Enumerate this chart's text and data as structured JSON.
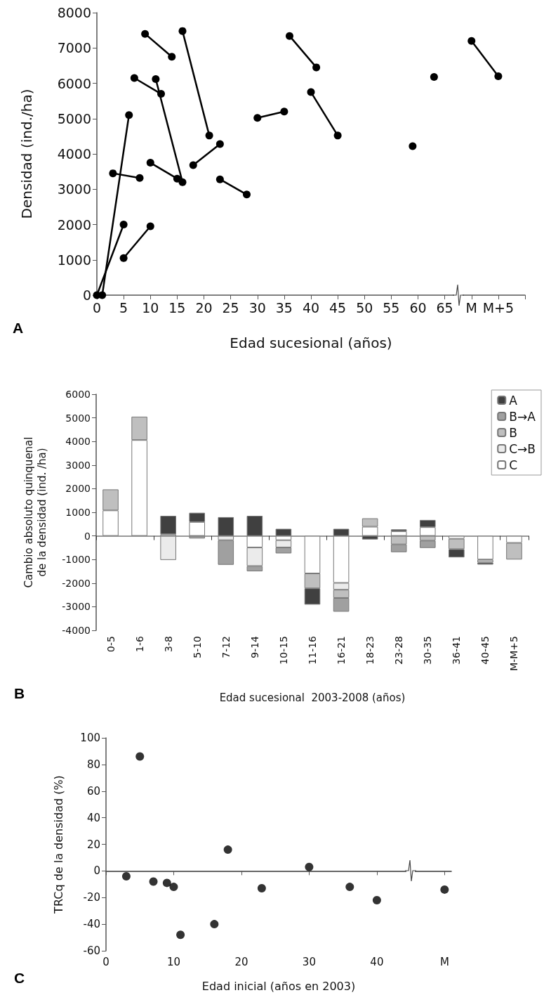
{
  "chart_data": [
    {
      "type": "line",
      "xlabel": "Edad sucesional (años)",
      "ylabel": "Densidad (ind./ha)",
      "annotations": [
        "A"
      ],
      "marker": "circle",
      "line_style": "solid",
      "xlim": [
        0,
        80
      ],
      "xticks": [
        0,
        5,
        10,
        15,
        20,
        25,
        30,
        35,
        40,
        45,
        50,
        55,
        60,
        65,
        {
          "value": 70,
          "label": "M"
        },
        {
          "value": 75,
          "label": "M+5"
        },
        {
          "value": 80,
          "label": null
        }
      ],
      "ylim": [
        0,
        8000
      ],
      "yticks": [
        0,
        1000,
        2000,
        3000,
        4000,
        5000,
        6000,
        7000,
        8000
      ],
      "series": [
        {
          "color": "#000000",
          "x": [
            1,
            6
          ],
          "values": [
            0,
            5100
          ]
        },
        {
          "color": "#000000",
          "x": [
            0,
            5
          ],
          "values": [
            0,
            2000
          ]
        },
        {
          "color": "#000000",
          "x": [
            5,
            10
          ],
          "values": [
            1050,
            1950
          ]
        },
        {
          "color": "#000000",
          "x": [
            3,
            8
          ],
          "values": [
            3450,
            3320
          ]
        },
        {
          "color": "#000000",
          "x": [
            7,
            12
          ],
          "values": [
            6150,
            5700
          ]
        },
        {
          "color": "#000000",
          "x": [
            11,
            16
          ],
          "values": [
            6120,
            3200
          ]
        },
        {
          "color": "#000000",
          "x": [
            9,
            14
          ],
          "values": [
            7400,
            6750
          ]
        },
        {
          "color": "#000000",
          "x": [
            10,
            15
          ],
          "values": [
            3750,
            3300
          ]
        },
        {
          "color": "#000000",
          "x": [
            16,
            21
          ],
          "values": [
            7480,
            4520
          ]
        },
        {
          "color": "#000000",
          "x": [
            18,
            23
          ],
          "values": [
            3680,
            4280
          ]
        },
        {
          "color": "#000000",
          "x": [
            23,
            28
          ],
          "values": [
            3280,
            2850
          ]
        },
        {
          "color": "#000000",
          "x": [
            30,
            35
          ],
          "values": [
            5020,
            5200
          ]
        },
        {
          "color": "#000000",
          "x": [
            36,
            41
          ],
          "values": [
            7340,
            6450
          ]
        },
        {
          "color": "#000000",
          "x": [
            40,
            45
          ],
          "values": [
            5750,
            4520
          ]
        },
        {
          "color": "#000000",
          "x": [
            59
          ],
          "values": [
            4220
          ]
        },
        {
          "color": "#000000",
          "x": [
            63
          ],
          "values": [
            6180
          ]
        },
        {
          "color": "#000000",
          "x": [
            70,
            75
          ],
          "values": [
            7200,
            6200
          ]
        }
      ]
    },
    {
      "type": "bar",
      "stacked": true,
      "xlabel": "Edad sucesional  2003-2008 (años)",
      "ylabel": "Cambio absoluto quinquenal\nde la densidad (ind. /ha)",
      "annotations": [
        "B"
      ],
      "legend": "top right",
      "categories": [
        "0-5",
        "1-6",
        "3-8",
        "5-10",
        "7-12",
        "9-14",
        "10-15",
        "11-16",
        "16-21",
        "18-23",
        "23-28",
        "30-35",
        "36-41",
        "40-45",
        "M-M+5"
      ],
      "ylim": [
        -4000,
        6000
      ],
      "yticks": [
        -4000,
        -3000,
        -2000,
        -1000,
        0,
        1000,
        2000,
        3000,
        4000,
        5000,
        6000
      ],
      "series": [
        {
          "name": "C",
          "color": "#ffffff",
          "values": [
            1080,
            4060,
            70,
            590,
            null,
            -490,
            -180,
            -1590,
            -1990,
            390,
            195,
            370,
            -120,
            -1000,
            -295
          ]
        },
        {
          "name": "C→B",
          "color": "#ebebeb",
          "values": [
            null,
            null,
            -1020,
            null,
            -180,
            -785,
            -310,
            null,
            -290,
            null,
            null,
            null,
            null,
            null,
            null
          ]
        },
        {
          "name": "B",
          "color": "#bfbfbf",
          "values": [
            890,
            990,
            null,
            null,
            null,
            null,
            null,
            -630,
            -350,
            355,
            -360,
            -200,
            -440,
            -130,
            -705
          ]
        },
        {
          "name": "B→A",
          "color": "#a0a0a0",
          "values": [
            null,
            null,
            null,
            -110,
            -1045,
            -225,
            -250,
            null,
            -580,
            null,
            -330,
            -310,
            null,
            null,
            null
          ]
        },
        {
          "name": "A",
          "color": "#404040",
          "values": [
            null,
            null,
            780,
            390,
            795,
            850,
            300,
            -690,
            300,
            -150,
            80,
            305,
            -350,
            -85,
            null
          ]
        }
      ]
    },
    {
      "type": "scatter",
      "xlabel": "Edad inicial (años en 2003)",
      "ylabel": "TRCq de la densidad (%)",
      "annotations": [
        "C"
      ],
      "marker": "circle",
      "xlim": [
        0,
        51
      ],
      "xticks": [
        0,
        10,
        20,
        30,
        40,
        {
          "value": 50,
          "label": "M"
        }
      ],
      "ylim": [
        -60,
        100
      ],
      "yticks": [
        -60,
        -40,
        -20,
        0,
        20,
        40,
        60,
        80,
        100
      ],
      "series": [
        {
          "color": "#000000",
          "x": [
            3,
            5,
            7,
            9,
            10,
            11,
            16,
            18,
            23,
            30,
            36,
            40,
            50
          ],
          "values": [
            -4,
            86,
            -8,
            -9,
            -12,
            -48,
            -40,
            16,
            -13,
            3,
            -12,
            -22,
            -14
          ]
        }
      ]
    }
  ]
}
